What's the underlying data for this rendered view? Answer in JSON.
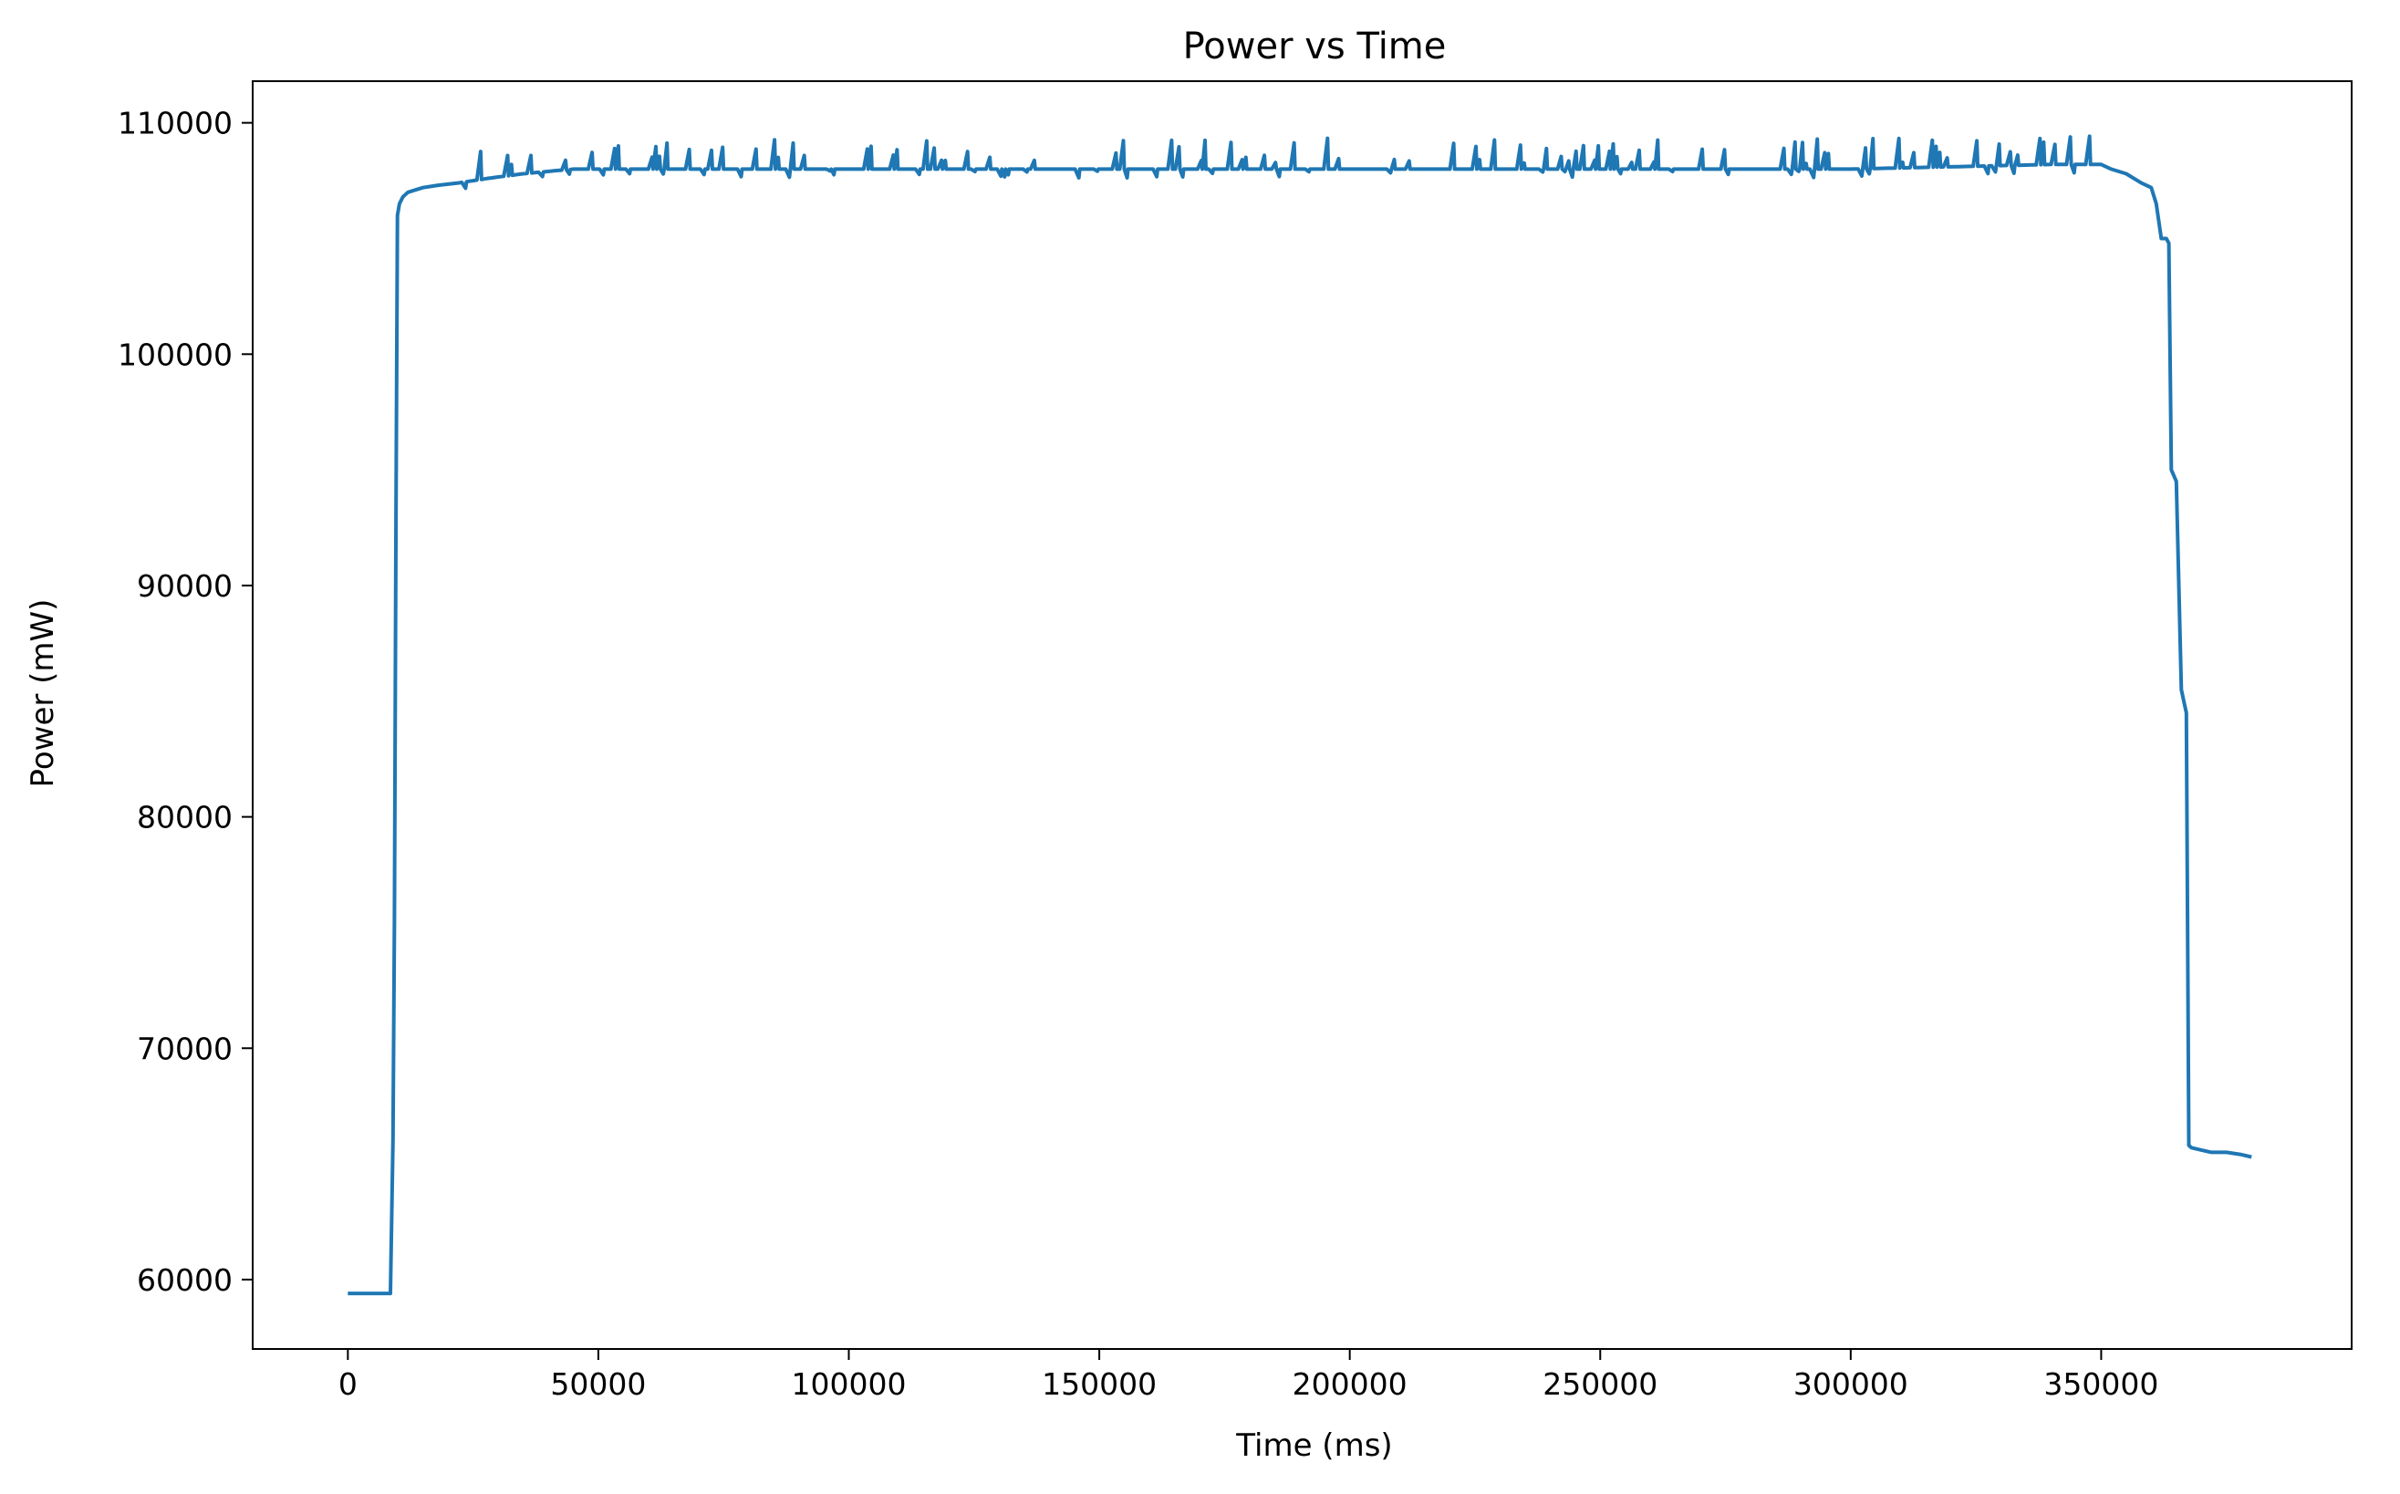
{
  "chart_data": {
    "type": "line",
    "title": "Power vs Time",
    "xlabel": "Time (ms)",
    "ylabel": "Power (mW)",
    "xlim": [
      -19000,
      400000
    ],
    "ylim": [
      57000,
      111800
    ],
    "x_ticks": [
      0,
      50000,
      100000,
      150000,
      200000,
      250000,
      300000,
      350000
    ],
    "y_ticks": [
      60000,
      70000,
      80000,
      90000,
      100000,
      110000
    ],
    "grid": false,
    "legend": "none",
    "colors": {
      "line": "#1f77b4",
      "axes": "#000000",
      "background": "#ffffff"
    },
    "series": [
      {
        "x": [
          0,
          3000,
          6000,
          8500,
          9000,
          9300,
          9600,
          9900,
          10300,
          11000,
          12000,
          13500,
          15000,
          18000,
          22000,
          28000,
          35000,
          45000,
          60000,
          80000,
          100000,
          120000,
          140000,
          160000,
          180000,
          200000,
          220000,
          240000,
          260000,
          280000,
          300000,
          320000,
          340000,
          350000,
          352000,
          355000,
          358000,
          360000,
          361000,
          362000,
          362500,
          363000,
          363500,
          364000,
          365000,
          366000,
          366500,
          367000,
          367500,
          368000,
          370000,
          372000,
          375000,
          378000,
          380000
        ],
        "y": [
          59400,
          59400,
          59400,
          59400,
          66000,
          75500,
          93000,
          106000,
          106500,
          106800,
          107000,
          107100,
          107200,
          107300,
          107400,
          107600,
          107800,
          108000,
          108000,
          108000,
          108000,
          108000,
          108000,
          108000,
          108000,
          108000,
          108000,
          108000,
          108000,
          108000,
          108000,
          108100,
          108200,
          108200,
          108000,
          107800,
          107400,
          107200,
          106500,
          105000,
          105000,
          105000,
          104800,
          95000,
          94500,
          85500,
          85000,
          84500,
          65800,
          65700,
          65600,
          65500,
          65500,
          65400,
          65300
        ]
      }
    ]
  }
}
